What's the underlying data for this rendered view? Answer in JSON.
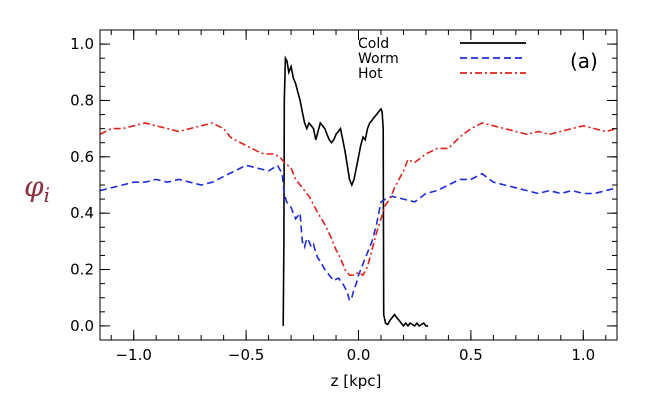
{
  "chart_data": {
    "type": "line",
    "title": "",
    "xlabel": "z [kpc]",
    "ylabel_main": "φ",
    "ylabel_sub": "i",
    "ylabel_color": "#8b2c3c",
    "panel_label": "(a)",
    "xlim": [
      -1.15,
      1.15
    ],
    "ylim": [
      -0.05,
      1.05
    ],
    "x_ticks": [
      -1.0,
      -0.5,
      0.0,
      0.5,
      1.0
    ],
    "x_tick_labels": [
      "−1.0",
      "−0.5",
      "0.0",
      "0.5",
      "1.0"
    ],
    "y_ticks": [
      0.0,
      0.2,
      0.4,
      0.6,
      0.8,
      1.0
    ],
    "y_tick_labels": [
      "0.0",
      "0.2",
      "0.4",
      "0.6",
      "0.8",
      "1.0"
    ],
    "x_minor_step": 0.1,
    "y_minor_step": 0.05,
    "legend_position": "top-right",
    "series": [
      {
        "name": "Cold",
        "color": "#000000",
        "dash": "solid",
        "x": [
          -0.335,
          -0.332,
          -0.33,
          -0.325,
          -0.318,
          -0.31,
          -0.3,
          -0.29,
          -0.28,
          -0.27,
          -0.26,
          -0.25,
          -0.24,
          -0.23,
          -0.22,
          -0.21,
          -0.2,
          -0.19,
          -0.18,
          -0.17,
          -0.16,
          -0.15,
          -0.14,
          -0.13,
          -0.12,
          -0.11,
          -0.1,
          -0.09,
          -0.08,
          -0.07,
          -0.06,
          -0.05,
          -0.04,
          -0.03,
          -0.02,
          -0.01,
          0.0,
          0.01,
          0.02,
          0.03,
          0.04,
          0.05,
          0.06,
          0.07,
          0.08,
          0.09,
          0.1,
          0.105,
          0.11,
          0.112,
          0.12,
          0.13,
          0.14,
          0.15,
          0.16,
          0.17,
          0.18,
          0.19,
          0.2,
          0.21,
          0.22,
          0.23,
          0.24,
          0.25,
          0.26,
          0.27,
          0.28,
          0.29,
          0.3,
          0.31
        ],
        "y": [
          0.0,
          0.3,
          0.8,
          0.95,
          0.94,
          0.9,
          0.92,
          0.88,
          0.86,
          0.83,
          0.8,
          0.76,
          0.72,
          0.7,
          0.72,
          0.71,
          0.7,
          0.66,
          0.69,
          0.72,
          0.71,
          0.7,
          0.68,
          0.66,
          0.65,
          0.66,
          0.68,
          0.69,
          0.7,
          0.66,
          0.62,
          0.57,
          0.52,
          0.5,
          0.52,
          0.56,
          0.6,
          0.64,
          0.67,
          0.66,
          0.7,
          0.72,
          0.73,
          0.74,
          0.75,
          0.76,
          0.77,
          0.76,
          0.7,
          0.04,
          0.01,
          0.005,
          0.02,
          0.03,
          0.04,
          0.03,
          0.02,
          0.01,
          0.0,
          0.01,
          0.0,
          0.01,
          0.005,
          0.0,
          0.01,
          0.0,
          0.005,
          0.01,
          0.0,
          0.0
        ]
      },
      {
        "name": "Worm",
        "color": "#1f2bd8",
        "dash": "dashed",
        "x": [
          -1.15,
          -1.1,
          -1.05,
          -1.0,
          -0.95,
          -0.9,
          -0.85,
          -0.8,
          -0.75,
          -0.7,
          -0.65,
          -0.6,
          -0.55,
          -0.5,
          -0.45,
          -0.4,
          -0.36,
          -0.34,
          -0.33,
          -0.32,
          -0.3,
          -0.28,
          -0.26,
          -0.25,
          -0.24,
          -0.23,
          -0.22,
          -0.21,
          -0.2,
          -0.19,
          -0.18,
          -0.17,
          -0.15,
          -0.13,
          -0.11,
          -0.09,
          -0.07,
          -0.05,
          -0.04,
          -0.03,
          -0.02,
          -0.01,
          0.0,
          0.02,
          0.04,
          0.06,
          0.08,
          0.1,
          0.12,
          0.15,
          0.2,
          0.25,
          0.3,
          0.35,
          0.4,
          0.45,
          0.5,
          0.55,
          0.6,
          0.65,
          0.7,
          0.75,
          0.8,
          0.85,
          0.9,
          0.95,
          1.0,
          1.05,
          1.1,
          1.15
        ],
        "y": [
          0.48,
          0.49,
          0.5,
          0.51,
          0.51,
          0.52,
          0.51,
          0.52,
          0.51,
          0.5,
          0.51,
          0.53,
          0.55,
          0.57,
          0.56,
          0.55,
          0.57,
          0.54,
          0.47,
          0.44,
          0.42,
          0.38,
          0.4,
          0.3,
          0.28,
          0.31,
          0.3,
          0.28,
          0.29,
          0.26,
          0.24,
          0.23,
          0.2,
          0.18,
          0.16,
          0.17,
          0.15,
          0.12,
          0.09,
          0.1,
          0.13,
          0.15,
          0.18,
          0.22,
          0.26,
          0.3,
          0.36,
          0.44,
          0.45,
          0.46,
          0.45,
          0.44,
          0.47,
          0.48,
          0.5,
          0.52,
          0.52,
          0.54,
          0.51,
          0.5,
          0.49,
          0.48,
          0.47,
          0.48,
          0.47,
          0.48,
          0.47,
          0.47,
          0.48,
          0.49
        ]
      },
      {
        "name": "Hot",
        "color": "#e0221c",
        "dash": "dash-dot",
        "x": [
          -1.15,
          -1.1,
          -1.05,
          -1.0,
          -0.95,
          -0.9,
          -0.85,
          -0.8,
          -0.75,
          -0.7,
          -0.65,
          -0.6,
          -0.57,
          -0.55,
          -0.5,
          -0.45,
          -0.42,
          -0.38,
          -0.35,
          -0.33,
          -0.3,
          -0.28,
          -0.25,
          -0.22,
          -0.2,
          -0.18,
          -0.15,
          -0.12,
          -0.1,
          -0.08,
          -0.06,
          -0.04,
          -0.02,
          0.0,
          0.02,
          0.04,
          0.06,
          0.08,
          0.1,
          0.12,
          0.14,
          0.16,
          0.18,
          0.2,
          0.22,
          0.25,
          0.3,
          0.35,
          0.4,
          0.45,
          0.5,
          0.55,
          0.6,
          0.65,
          0.7,
          0.75,
          0.8,
          0.85,
          0.9,
          0.95,
          1.0,
          1.05,
          1.1,
          1.15
        ],
        "y": [
          0.68,
          0.7,
          0.7,
          0.71,
          0.72,
          0.71,
          0.7,
          0.69,
          0.7,
          0.71,
          0.72,
          0.7,
          0.67,
          0.66,
          0.64,
          0.62,
          0.61,
          0.61,
          0.6,
          0.58,
          0.56,
          0.52,
          0.49,
          0.46,
          0.43,
          0.4,
          0.36,
          0.31,
          0.27,
          0.24,
          0.2,
          0.18,
          0.18,
          0.19,
          0.18,
          0.21,
          0.27,
          0.33,
          0.38,
          0.43,
          0.45,
          0.49,
          0.52,
          0.55,
          0.59,
          0.58,
          0.61,
          0.63,
          0.63,
          0.67,
          0.7,
          0.72,
          0.71,
          0.7,
          0.69,
          0.68,
          0.69,
          0.68,
          0.69,
          0.7,
          0.71,
          0.7,
          0.69,
          0.7
        ]
      }
    ]
  }
}
